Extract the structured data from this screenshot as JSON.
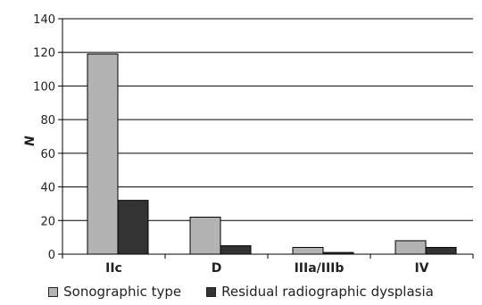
{
  "chart_data": {
    "type": "bar",
    "ylabel": "N",
    "xlabel": "",
    "ylim": [
      0,
      140
    ],
    "yticks": [
      0,
      20,
      40,
      60,
      80,
      100,
      120,
      140
    ],
    "grid": true,
    "legend_position": "bottom",
    "categories": [
      "IIc",
      "D",
      "IIIa/IIIb",
      "IV"
    ],
    "series": [
      {
        "name": "Sonographic type",
        "color": "#b3b3b3",
        "values": [
          119,
          22,
          4,
          8
        ]
      },
      {
        "name": "Residual radiographic dysplasia",
        "color": "#333333",
        "values": [
          32,
          5,
          1,
          4
        ]
      }
    ]
  }
}
